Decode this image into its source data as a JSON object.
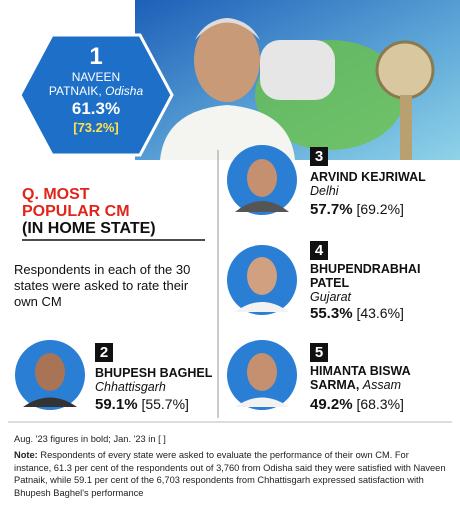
{
  "entries": [
    {
      "rank": "1",
      "name": [
        "NAVEEN",
        "PATNAIK,"
      ],
      "state": "Odisha",
      "aug": "61.3%",
      "jan": "[73.2%]"
    },
    {
      "rank": "2",
      "name": [
        "BHUPESH BAGHEL"
      ],
      "state": "Chhattisgarh",
      "aug": "59.1%",
      "jan": "[55.7%]"
    },
    {
      "rank": "3",
      "name": [
        "ARVIND KEJRIWAL"
      ],
      "state": "Delhi",
      "aug": "57.7%",
      "jan": "[69.2%]"
    },
    {
      "rank": "4",
      "name": [
        "BHUPENDRABHAI",
        "PATEL"
      ],
      "state": "Gujarat",
      "aug": "55.3%",
      "jan": "[43.6%]"
    },
    {
      "rank": "5",
      "name": [
        "HIMANTA BISWA",
        "SARMA,"
      ],
      "state": "Assam",
      "aug": "49.2%",
      "jan": "[68.3%]"
    }
  ],
  "question": [
    "Q. MOST",
    "POPULAR CM",
    "(IN HOME STATE)"
  ],
  "description": "Respondents in each of the 30 states were asked to rate their own CM",
  "figures_note": "Aug. '23 figures in bold; Jan. '23 in [ ]",
  "note": {
    "label": "Note:",
    "text": "Respondents of every state were asked to evaluate the performance of their own CM. For instance, 61.3 per cent of the respondents out of 3,760 from Odisha said they were satisfied with Naveen Patnaik, while 59.1 per cent of the 6,703 respondents from Chhattisgarh expressed satisfaction with Bhupesh Baghel's performance"
  }
}
